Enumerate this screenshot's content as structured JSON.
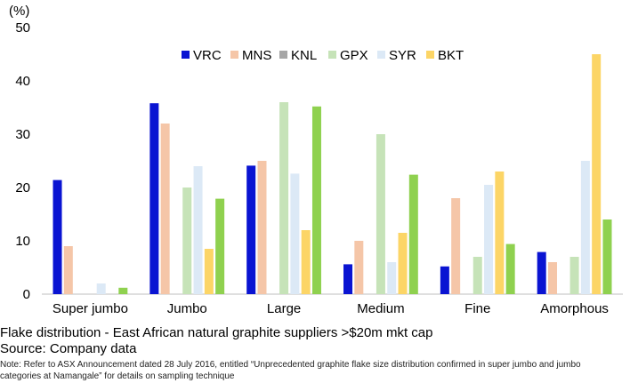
{
  "chart_data": {
    "type": "bar",
    "unit_label": "(%)",
    "ylim": [
      0,
      50
    ],
    "yticks": [
      0,
      10,
      20,
      30,
      40,
      50
    ],
    "grid": false,
    "legend_position": "top",
    "categories": [
      "Super jumbo",
      "Jumbo",
      "Large",
      "Medium",
      "Fine",
      "Amorphous"
    ],
    "series": [
      {
        "name": "VRC",
        "color": "#0a14d2",
        "values": [
          21.4,
          35.8,
          24.1,
          5.6,
          5.2,
          7.9
        ]
      },
      {
        "name": "MNS",
        "color": "#f5c6a8",
        "values": [
          9.0,
          32.0,
          25.0,
          10.0,
          18.0,
          6.0
        ]
      },
      {
        "name": "KNL",
        "color": "#a6a6a6",
        "values": [
          0,
          0,
          0,
          0,
          0,
          0
        ]
      },
      {
        "name": "GPX",
        "color": "#c6e3b8",
        "values": [
          0,
          20.0,
          36.0,
          30.0,
          7.0,
          7.0
        ]
      },
      {
        "name": "SYR",
        "color": "#dce9f6",
        "values": [
          2.0,
          24.0,
          22.6,
          6.0,
          20.5,
          25.0
        ]
      },
      {
        "name": "BKT",
        "color": "#fcd566",
        "values": [
          0,
          8.5,
          12.0,
          11.5,
          23.0,
          45.0
        ]
      },
      {
        "name": "",
        "color": "#8fd14f",
        "values": [
          1.2,
          17.9,
          35.2,
          22.4,
          9.4,
          14.0
        ]
      }
    ]
  },
  "captions": {
    "title": "Flake distribution - East African natural graphite suppliers >$20m mkt cap",
    "source": "Source: Company data",
    "note": "Note: Refer to ASX Announcement dated 28 July 2016, entitled “Unprecedented graphite flake size distribution confirmed in super jumbo and jumbo categories at Namangale” for details on sampling technique"
  }
}
